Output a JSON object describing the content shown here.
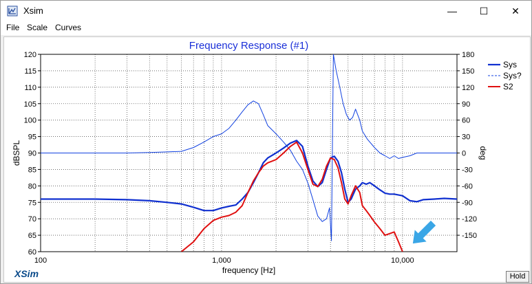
{
  "window": {
    "title": "Xsim"
  },
  "menu": [
    "File",
    "Scale",
    "Curves"
  ],
  "controls": {
    "minimize": "—",
    "maximize": "☐",
    "close": "✕"
  },
  "logo": "XSim",
  "hold_label": "Hold",
  "colors": {
    "sys": "#1030d0",
    "sys_phase": "#1040e0",
    "s2": "#e01010",
    "title": "#1a2fd8",
    "arrow": "#3aa6e6"
  },
  "chart_data": {
    "type": "line",
    "title": "Frequency Response (#1)",
    "xlabel": "frequency [Hz]",
    "ylabel": "dBSPL",
    "y2label": "deg",
    "xscale": "log",
    "xlim": [
      100,
      20000
    ],
    "ylim": [
      60,
      120
    ],
    "y2lim": [
      -180,
      180
    ],
    "grid": true,
    "legend_placement": "right",
    "x_tick_labels": [
      {
        "x": 100,
        "label": "100"
      },
      {
        "x": 1000,
        "label": "1,000"
      },
      {
        "x": 10000,
        "label": "10,000"
      }
    ],
    "y_ticks": [
      60,
      65,
      70,
      75,
      80,
      85,
      90,
      95,
      100,
      105,
      110,
      115,
      120
    ],
    "y2_ticks": [
      -150,
      -120,
      -90,
      -60,
      -30,
      0,
      30,
      60,
      90,
      120,
      150,
      180
    ],
    "series": [
      {
        "name": "Sys",
        "axis": "left",
        "style": "solid-thick",
        "x": [
          100,
          200,
          300,
          400,
          500,
          600,
          700,
          800,
          900,
          1000,
          1100,
          1200,
          1300,
          1400,
          1500,
          1600,
          1700,
          1800,
          2000,
          2200,
          2400,
          2600,
          2800,
          3000,
          3200,
          3400,
          3600,
          3800,
          4000,
          4200,
          4400,
          4600,
          4800,
          5000,
          5200,
          5500,
          5800,
          6000,
          6300,
          6600,
          7000,
          7500,
          8000,
          8500,
          9000,
          10000,
          11000,
          12000,
          13000,
          15000,
          17000,
          20000
        ],
        "values": [
          76,
          76,
          75.8,
          75.5,
          75,
          74.5,
          73.5,
          72.5,
          72.5,
          73.3,
          73.8,
          74.2,
          76,
          78,
          81,
          84,
          87,
          88.5,
          90,
          91.5,
          93,
          93.8,
          92,
          86,
          81.5,
          79.8,
          81,
          85,
          88.5,
          89,
          87.5,
          84,
          79,
          75,
          76,
          79,
          80,
          81,
          80.5,
          81,
          80,
          78.8,
          77.8,
          77.5,
          77.5,
          77,
          75.5,
          75.2,
          75.8,
          76,
          76.2,
          76
        ]
      },
      {
        "name": "Sys?",
        "axis": "right",
        "style": "thin",
        "x": [
          100,
          200,
          300,
          400,
          500,
          600,
          700,
          800,
          900,
          1000,
          1100,
          1200,
          1300,
          1400,
          1500,
          1600,
          1700,
          1800,
          2000,
          2200,
          2400,
          2600,
          2800,
          3000,
          3200,
          3400,
          3600,
          3800,
          3950,
          4050,
          4150,
          4300,
          4500,
          4700,
          4900,
          5100,
          5300,
          5500,
          5800,
          6000,
          6400,
          7000,
          7500,
          8000,
          8500,
          9000,
          9500,
          10000,
          11000,
          12000,
          15000,
          20000
        ],
        "values": [
          0,
          0,
          0,
          1,
          2,
          3,
          10,
          20,
          30,
          35,
          45,
          60,
          75,
          88,
          95,
          90,
          70,
          50,
          35,
          20,
          5,
          -15,
          -30,
          -55,
          -85,
          -115,
          -125,
          -120,
          -100,
          -160,
          180,
          150,
          120,
          90,
          70,
          60,
          65,
          80,
          60,
          40,
          25,
          10,
          0,
          -5,
          -10,
          -5,
          -10,
          -8,
          -5,
          0,
          0,
          0
        ]
      },
      {
        "name": "S2",
        "axis": "left",
        "style": "solid-red",
        "x": [
          600,
          700,
          800,
          900,
          1000,
          1100,
          1200,
          1300,
          1400,
          1500,
          1600,
          1700,
          1800,
          2000,
          2200,
          2400,
          2600,
          2800,
          3000,
          3200,
          3400,
          3600,
          3800,
          4000,
          4200,
          4400,
          4600,
          4800,
          5000,
          5200,
          5500,
          5800,
          6000,
          6300,
          6600,
          7000,
          7500,
          8000,
          8500,
          9000,
          9500,
          10000
        ],
        "values": [
          60,
          63,
          67,
          69.5,
          70.5,
          71,
          72,
          74,
          78,
          81.5,
          84,
          86,
          87,
          88,
          90,
          92,
          93.3,
          90,
          85,
          80.5,
          79.8,
          82,
          86,
          88.5,
          88,
          85.5,
          81,
          76,
          74.5,
          77,
          80,
          78,
          74,
          72.5,
          71,
          69,
          67,
          65,
          65.5,
          66,
          63,
          60
        ]
      }
    ]
  }
}
